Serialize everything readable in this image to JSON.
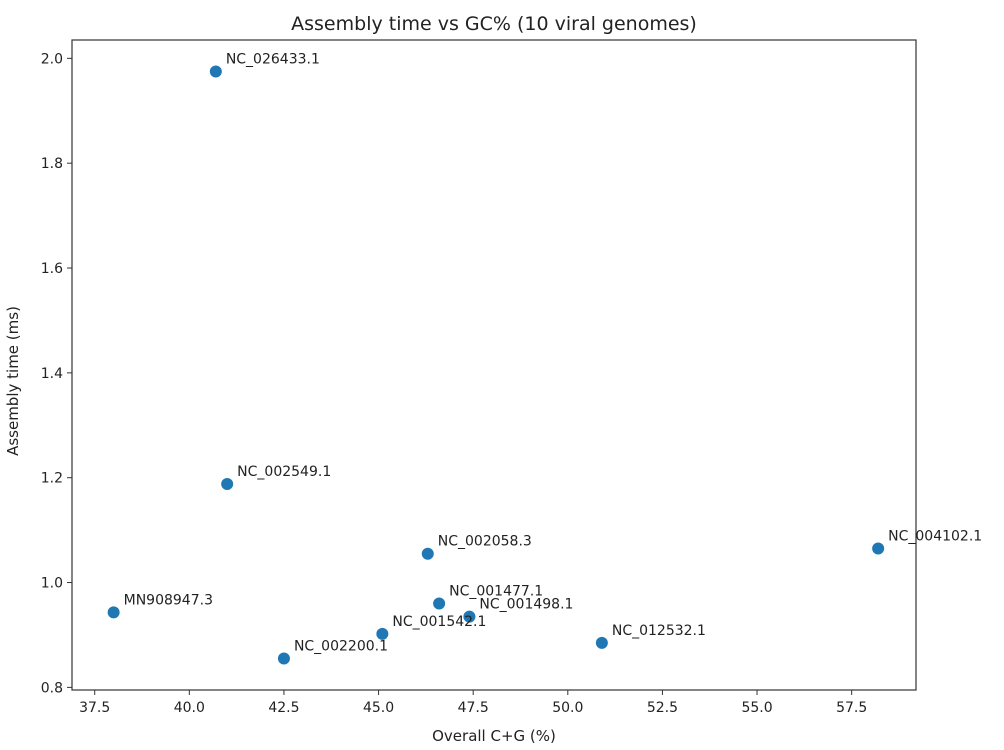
{
  "chart_data": {
    "type": "scatter",
    "title": "Assembly time vs GC% (10 viral genomes)",
    "xlabel": "Overall C+G (%)",
    "ylabel": "Assembly time (ms)",
    "xlim": [
      36.9,
      59.2
    ],
    "ylim": [
      0.795,
      2.035
    ],
    "xticks": [
      "37.5",
      "40.0",
      "42.5",
      "45.0",
      "47.5",
      "50.0",
      "52.5",
      "55.0",
      "57.5"
    ],
    "yticks": [
      "0.8",
      "1.0",
      "1.2",
      "1.4",
      "1.6",
      "1.8",
      "2.0"
    ],
    "grid": false,
    "point_color": "#1f77b4",
    "points": [
      {
        "label": "NC_026433.1",
        "x": 40.7,
        "y": 1.975
      },
      {
        "label": "NC_002549.1",
        "x": 41.0,
        "y": 1.188
      },
      {
        "label": "NC_002058.3",
        "x": 46.3,
        "y": 1.055
      },
      {
        "label": "NC_004102.1",
        "x": 58.2,
        "y": 1.065
      },
      {
        "label": "MN908947.3",
        "x": 38.0,
        "y": 0.943
      },
      {
        "label": "NC_001477.1",
        "x": 46.6,
        "y": 0.96
      },
      {
        "label": "NC_001498.1",
        "x": 47.4,
        "y": 0.935
      },
      {
        "label": "NC_001542.1",
        "x": 45.1,
        "y": 0.902
      },
      {
        "label": "NC_012532.1",
        "x": 50.9,
        "y": 0.885
      },
      {
        "label": "NC_002200.1",
        "x": 42.5,
        "y": 0.855
      }
    ]
  }
}
